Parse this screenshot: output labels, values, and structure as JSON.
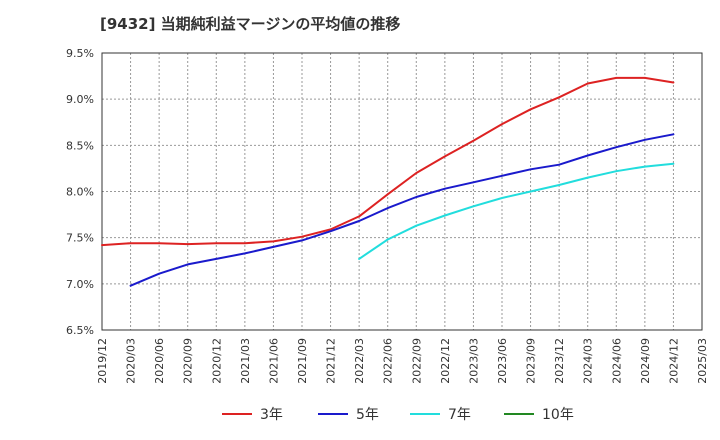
{
  "chart_data": {
    "type": "line",
    "title": "[9432]  当期純利益マージンの平均値の推移",
    "xlabel": "",
    "ylabel": "",
    "x_ticks": [
      "2019/12",
      "2020/03",
      "2020/06",
      "2020/09",
      "2020/12",
      "2021/03",
      "2021/06",
      "2021/09",
      "2021/12",
      "2022/03",
      "2022/06",
      "2022/09",
      "2022/12",
      "2023/03",
      "2023/06",
      "2023/09",
      "2023/12",
      "2024/03",
      "2024/06",
      "2024/09",
      "2024/12",
      "2025/03"
    ],
    "y_ticks": [
      "6.5%",
      "7.0%",
      "7.5%",
      "8.0%",
      "8.5%",
      "9.0%",
      "9.5%"
    ],
    "ylim": [
      6.5,
      9.5
    ],
    "grid": true,
    "legend_position": "bottom",
    "series": [
      {
        "name": "3年",
        "color": "#dd2222",
        "x": [
          "2019/12",
          "2020/03",
          "2020/06",
          "2020/09",
          "2020/12",
          "2021/03",
          "2021/06",
          "2021/09",
          "2021/12",
          "2022/03",
          "2022/06",
          "2022/09",
          "2022/12",
          "2023/03",
          "2023/06",
          "2023/09",
          "2023/12",
          "2024/03",
          "2024/06",
          "2024/09",
          "2024/12"
        ],
        "values": [
          7.42,
          7.44,
          7.44,
          7.43,
          7.44,
          7.44,
          7.46,
          7.51,
          7.59,
          7.73,
          7.97,
          8.2,
          8.38,
          8.55,
          8.73,
          8.89,
          9.02,
          9.17,
          9.23,
          9.23,
          9.18
        ]
      },
      {
        "name": "5年",
        "color": "#1a1acc",
        "x": [
          "2020/03",
          "2020/06",
          "2020/09",
          "2020/12",
          "2021/03",
          "2021/06",
          "2021/09",
          "2021/12",
          "2022/03",
          "2022/06",
          "2022/09",
          "2022/12",
          "2023/03",
          "2023/06",
          "2023/09",
          "2023/12",
          "2024/03",
          "2024/06",
          "2024/09",
          "2024/12"
        ],
        "values": [
          6.98,
          7.11,
          7.21,
          7.27,
          7.33,
          7.4,
          7.47,
          7.57,
          7.68,
          7.82,
          7.94,
          8.03,
          8.1,
          8.17,
          8.24,
          8.29,
          8.39,
          8.48,
          8.56,
          8.62
        ]
      },
      {
        "name": "7年",
        "color": "#22dddd",
        "x": [
          "2022/03",
          "2022/06",
          "2022/09",
          "2022/12",
          "2023/03",
          "2023/06",
          "2023/09",
          "2023/12",
          "2024/03",
          "2024/06",
          "2024/09",
          "2024/12"
        ],
        "values": [
          7.27,
          7.48,
          7.63,
          7.74,
          7.84,
          7.93,
          8.0,
          8.07,
          8.15,
          8.22,
          8.27,
          8.3
        ]
      },
      {
        "name": "10年",
        "color": "#228822",
        "x": [],
        "values": []
      }
    ]
  }
}
